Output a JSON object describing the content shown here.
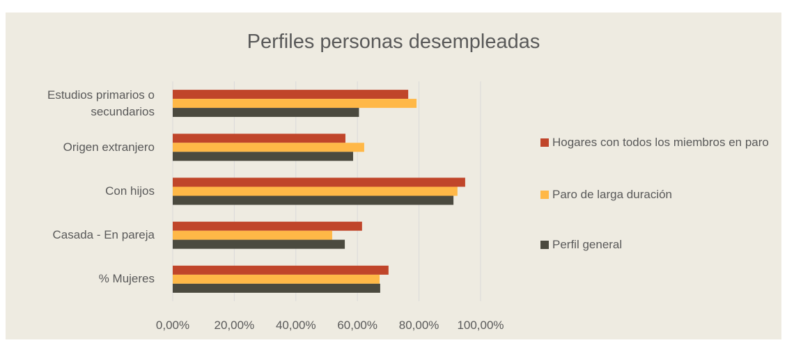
{
  "chart_data": {
    "type": "hbar",
    "title": "Perfiles personas desempleadas",
    "categories": [
      "Estudios primarios o secundarios",
      "Origen extranjero",
      "Con hijos",
      "Casada - En pareja",
      "% Mujeres"
    ],
    "series": [
      {
        "name": "Hogares con todos los miembros en paro",
        "color": "#c0452a",
        "values": [
          76.5,
          56.1,
          95.0,
          61.5,
          70.1
        ]
      },
      {
        "name": "Paro de larga duración",
        "color": "#ffb847",
        "values": [
          79.2,
          62.2,
          92.5,
          51.8,
          67.2
        ]
      },
      {
        "name": "Perfil general",
        "color": "#4b4a3f",
        "values": [
          60.5,
          58.6,
          91.2,
          55.9,
          67.4
        ]
      }
    ],
    "xlim": [
      0,
      100
    ],
    "xticks": [
      {
        "value": 0,
        "label": "0,00%"
      },
      {
        "value": 20,
        "label": "20,00%"
      },
      {
        "value": 40,
        "label": "40,00%"
      },
      {
        "value": 60,
        "label": "60,00%"
      },
      {
        "value": 80,
        "label": "80,00%"
      },
      {
        "value": 100,
        "label": "100,00%"
      }
    ],
    "grid": true,
    "legend": "right"
  }
}
